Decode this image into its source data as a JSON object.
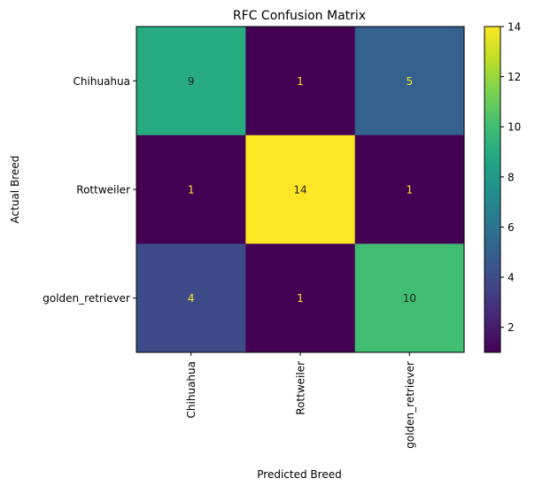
{
  "chart_data": {
    "type": "heatmap",
    "title": "RFC Confusion Matrix",
    "xlabel": "Predicted Breed",
    "ylabel": "Actual Breed",
    "x_categories": [
      "Chihuahua",
      "Rottweiler",
      "golden_retriever"
    ],
    "y_categories": [
      "Chihuahua",
      "Rottweiler",
      "golden_retriever"
    ],
    "values": [
      [
        9,
        1,
        5
      ],
      [
        1,
        14,
        1
      ],
      [
        4,
        1,
        10
      ]
    ],
    "colormap": "viridis",
    "color_range": [
      1,
      14
    ],
    "colorbar_ticks": [
      2,
      4,
      6,
      8,
      10,
      12,
      14
    ],
    "text_color_dark": "#222222",
    "text_color_light": "#fde725"
  }
}
